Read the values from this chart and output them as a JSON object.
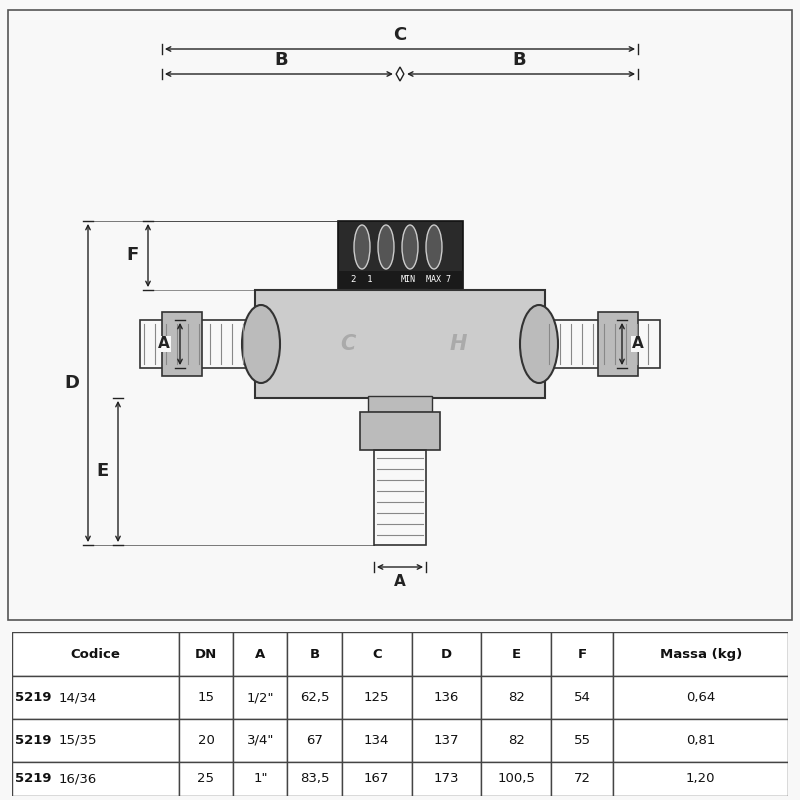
{
  "bg_color": "#f8f8f8",
  "border_color": "#555555",
  "table_headers": [
    "Codice",
    "DN",
    "A",
    "B",
    "C",
    "D",
    "E",
    "F",
    "Massa (kg)"
  ],
  "table_rows": [
    [
      "5219",
      "14/34",
      "15",
      "1/2\"",
      "62,5",
      "125",
      "136",
      "82",
      "54",
      "0,64"
    ],
    [
      "5219",
      "15/35",
      "20",
      "3/4\"",
      "67",
      "134",
      "137",
      "82",
      "55",
      "0,81"
    ],
    [
      "5219",
      "16/36",
      "25",
      "1\"",
      "83,5",
      "167",
      "173",
      "100,5",
      "72",
      "1,20"
    ]
  ],
  "dim_color": "#222222",
  "knob_color": "#2a2a2a",
  "knob_color2": "#444444",
  "body_color": "#cccccc",
  "body_mid": "#bbbbbb",
  "body_dark": "#999999",
  "thread_color": "#888888",
  "white": "#ffffff"
}
